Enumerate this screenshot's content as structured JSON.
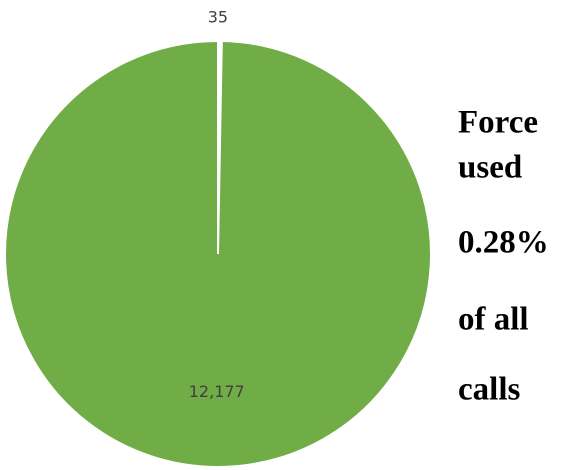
{
  "chart_data": {
    "type": "pie",
    "categories": [
      null,
      null
    ],
    "values": [
      35,
      12177
    ],
    "value_labels": [
      "35",
      "12,177"
    ],
    "colors": [
      "#ffffff",
      "#70ad47"
    ],
    "annotation_lines": [
      "Force",
      "used",
      "0.28%",
      "of all",
      "calls"
    ]
  }
}
